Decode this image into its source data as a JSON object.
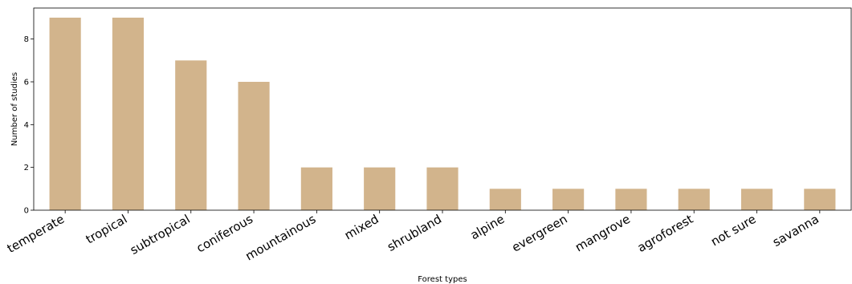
{
  "chart_data": {
    "type": "bar",
    "title": "",
    "xlabel": "Forest types",
    "ylabel": "Number of studies",
    "categories": [
      "temperate",
      "tropical",
      "subtropical",
      "coniferous",
      "mountainous",
      "mixed",
      "shrubland",
      "alpine",
      "evergreen",
      "mangrove",
      "agroforest",
      "not sure",
      "savanna"
    ],
    "values": [
      9,
      9,
      7,
      6,
      2,
      2,
      2,
      1,
      1,
      1,
      1,
      1,
      1
    ],
    "ylim": [
      0,
      9.45
    ],
    "yticks": [
      0,
      2,
      4,
      6,
      8
    ],
    "bar_color": "#d2b48c",
    "grid": false,
    "legend": "none"
  }
}
